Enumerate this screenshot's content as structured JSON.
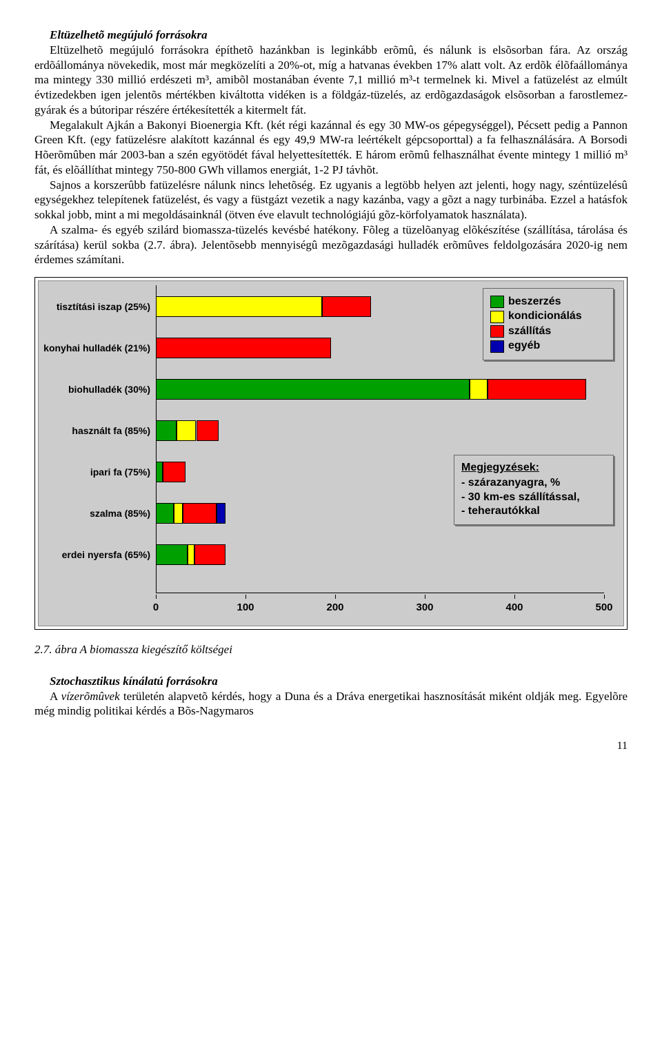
{
  "section1": {
    "title": "Eltüzelhetõ megújuló forrásokra",
    "p1": "Eltüzelhetõ megújuló forrásokra építhetõ hazánkban is leginkább erõmû, és nálunk is elsõsorban fára. Az ország erdõállománya növekedik, most már megközelíti a 20%-ot, míg a hatvanas években 17% alatt volt. Az erdõk élõfaállománya ma mintegy 330 millió erdészeti m³, amibõl mostanában évente 7,1 millió m³-t termelnek ki. Mivel a fatüzelést az elmúlt évtizedekben igen jelentõs mértékben kiváltotta vidéken is a földgáz-tüzelés, az erdõgazdaságok elsõsorban a farostlemez-gyárak és a bútoripar részére értékesítették a kitermelt fát.",
    "p2": "Megalakult Ajkán a Bakonyi Bioenergia Kft. (két régi kazánnal és egy 30 MW-os gépegységgel), Pécsett pedig a Pannon Green Kft. (egy fatüzelésre alakított kazánnal és egy 49,9 MW-ra leértékelt gépcsoporttal) a fa felhasználására. A Borsodi Hõerõmûben már 2003-ban a szén egyötödét fával helyettesítették. E három erõmû felhasználhat évente mintegy 1 millió m³ fát, és elõállíthat mintegy 750-800 GWh villamos energiát, 1-2 PJ távhõt.",
    "p3": "Sajnos a korszerûbb fatüzelésre nálunk nincs lehetõség. Ez ugyanis a legtöbb helyen azt jelenti, hogy nagy, széntüzelésû egységekhez telepítenek fatüzelést, és vagy a füstgázt vezetik a nagy kazánba, vagy a gõzt a nagy turbinába. Ezzel a hatásfok sokkal jobb, mint a mi megoldásainknál (ötven éve elavult technológiájú gõz-körfolyamatok használata).",
    "p4": "A szalma- és egyéb szilárd biomassza-tüzelés kevésbé hatékony. Fõleg a tüzelõanyag elõkészítése (szállítása, tárolása és szárítása) kerül sokba (2.7. ábra). Jelentõsebb mennyiségû mezõgazdasági hulladék erõmûves feldolgozására 2020-ig nem érdemes számítani."
  },
  "chart": {
    "type": "stacked-horizontal-bar",
    "xlim": [
      0,
      500
    ],
    "xticks": [
      0,
      100,
      200,
      300,
      400,
      500
    ],
    "background": "#cccccc",
    "colors": {
      "beszerzes": "#00a000",
      "kondicionalas": "#ffff00",
      "szallitas": "#ff0000",
      "egyeb": "#0000b0"
    },
    "legend": [
      {
        "label": "beszerzés",
        "key": "beszerzes"
      },
      {
        "label": "kondicionálás",
        "key": "kondicionalas"
      },
      {
        "label": "szállítás",
        "key": "szallitas"
      },
      {
        "label": "egyéb",
        "key": "egyeb"
      }
    ],
    "notes": {
      "title": "Megjegyzések:",
      "lines": [
        "- szárazanyagra, %",
        "- 30 km-es szállítással,",
        "- teherautókkal"
      ]
    },
    "rows": [
      {
        "label": "tisztítási iszap (25%)",
        "segments": [
          {
            "k": "kondicionalas",
            "v": 185
          },
          {
            "k": "szallitas",
            "v": 55
          }
        ]
      },
      {
        "label": "konyhai hulladék (21%)",
        "segments": [
          {
            "k": "szallitas",
            "v": 195
          }
        ]
      },
      {
        "label": "biohulladék (30%)",
        "segments": [
          {
            "k": "beszerzes",
            "v": 350
          },
          {
            "k": "kondicionalas",
            "v": 20
          },
          {
            "k": "szallitas",
            "v": 110
          }
        ]
      },
      {
        "label": "használt fa (85%)",
        "segments": [
          {
            "k": "beszerzes",
            "v": 23
          },
          {
            "k": "kondicionalas",
            "v": 22
          },
          {
            "k": "szallitas",
            "v": 25
          }
        ]
      },
      {
        "label": "ipari fa (75%)",
        "segments": [
          {
            "k": "beszerzes",
            "v": 8
          },
          {
            "k": "szallitas",
            "v": 25
          }
        ]
      },
      {
        "label": "szalma (85%)",
        "segments": [
          {
            "k": "beszerzes",
            "v": 20
          },
          {
            "k": "kondicionalas",
            "v": 10
          },
          {
            "k": "szallitas",
            "v": 38
          },
          {
            "k": "egyeb",
            "v": 10
          }
        ]
      },
      {
        "label": "erdei nyersfa (65%)",
        "segments": [
          {
            "k": "beszerzes",
            "v": 35
          },
          {
            "k": "kondicionalas",
            "v": 8
          },
          {
            "k": "szallitas",
            "v": 35
          }
        ]
      }
    ],
    "label_fontsize": 14,
    "tick_fontsize": 15
  },
  "caption": "2.7. ábra A biomassza kiegészítő költségei",
  "section2": {
    "title": "Sztochasztikus kínálatú forrásokra",
    "p1a": "A ",
    "p1_em": "vízerõmûvek",
    "p1b": " területén alapvetõ kérdés, hogy a Duna és a Dráva energetikai hasznosítását miként oldják meg. Egyelõre még mindig politikai kérdés a Bõs-Nagymaros"
  },
  "page_number": "11"
}
